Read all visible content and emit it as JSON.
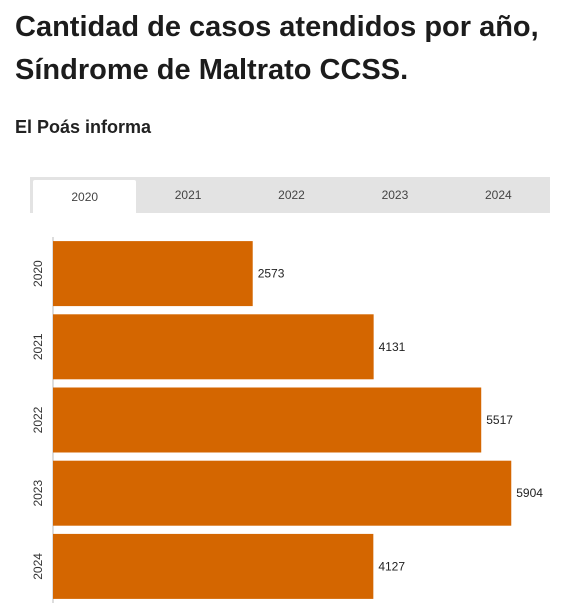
{
  "header": {
    "title": "Cantidad de casos atendidos por año, Síndrome de Maltrato CCSS.",
    "subtitle": "El Poás informa"
  },
  "tabs": [
    {
      "label": "2020",
      "active": true
    },
    {
      "label": "2021",
      "active": false
    },
    {
      "label": "2022",
      "active": false
    },
    {
      "label": "2023",
      "active": false
    },
    {
      "label": "2024",
      "active": false
    }
  ],
  "colors": {
    "bar": "#d46600",
    "tab_bg": "#e3e3e3",
    "tab_active_bg": "#ffffff"
  },
  "chart_data": {
    "type": "bar",
    "orientation": "horizontal",
    "categories": [
      "2020",
      "2021",
      "2022",
      "2023",
      "2024"
    ],
    "values": [
      2573,
      4131,
      5517,
      5904,
      4127
    ],
    "data_labels": true,
    "xlim": [
      0,
      6300
    ],
    "grid": false
  }
}
